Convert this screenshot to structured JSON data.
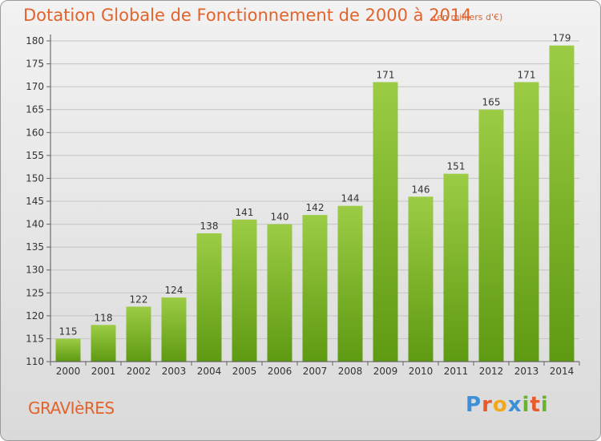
{
  "header": {
    "title": "Dotation Globale de Fonctionnement de 2000 à 2014",
    "unit": "(en milliers d'€)"
  },
  "footer": {
    "commune": "GRAVIèRES",
    "logo": "Proxiti"
  },
  "colors": {
    "title": "#e2632b",
    "bar_light": "#9ccc45",
    "bar_dark": "#5e9a12",
    "logo_p": "#3d8fd6",
    "logo_r": "#e85a2a",
    "logo_o": "#f2a81d",
    "logo_x": "#3d8fd6",
    "logo_i": "#6ab42d",
    "logo_t": "#e85a2a",
    "logo_i2": "#6ab42d"
  },
  "chart_data": {
    "type": "bar",
    "categories": [
      "2000",
      "2001",
      "2002",
      "2003",
      "2004",
      "2005",
      "2006",
      "2007",
      "2008",
      "2009",
      "2010",
      "2011",
      "2012",
      "2013",
      "2014"
    ],
    "values": [
      115,
      118,
      122,
      124,
      138,
      141,
      140,
      142,
      144,
      171,
      146,
      151,
      165,
      171,
      179
    ],
    "ylim": [
      110,
      180
    ],
    "yticks": [
      110,
      115,
      120,
      125,
      130,
      135,
      140,
      145,
      150,
      155,
      160,
      165,
      170,
      175,
      180
    ],
    "grid": true,
    "xlabel": "",
    "ylabel": "",
    "data_labels": true
  }
}
